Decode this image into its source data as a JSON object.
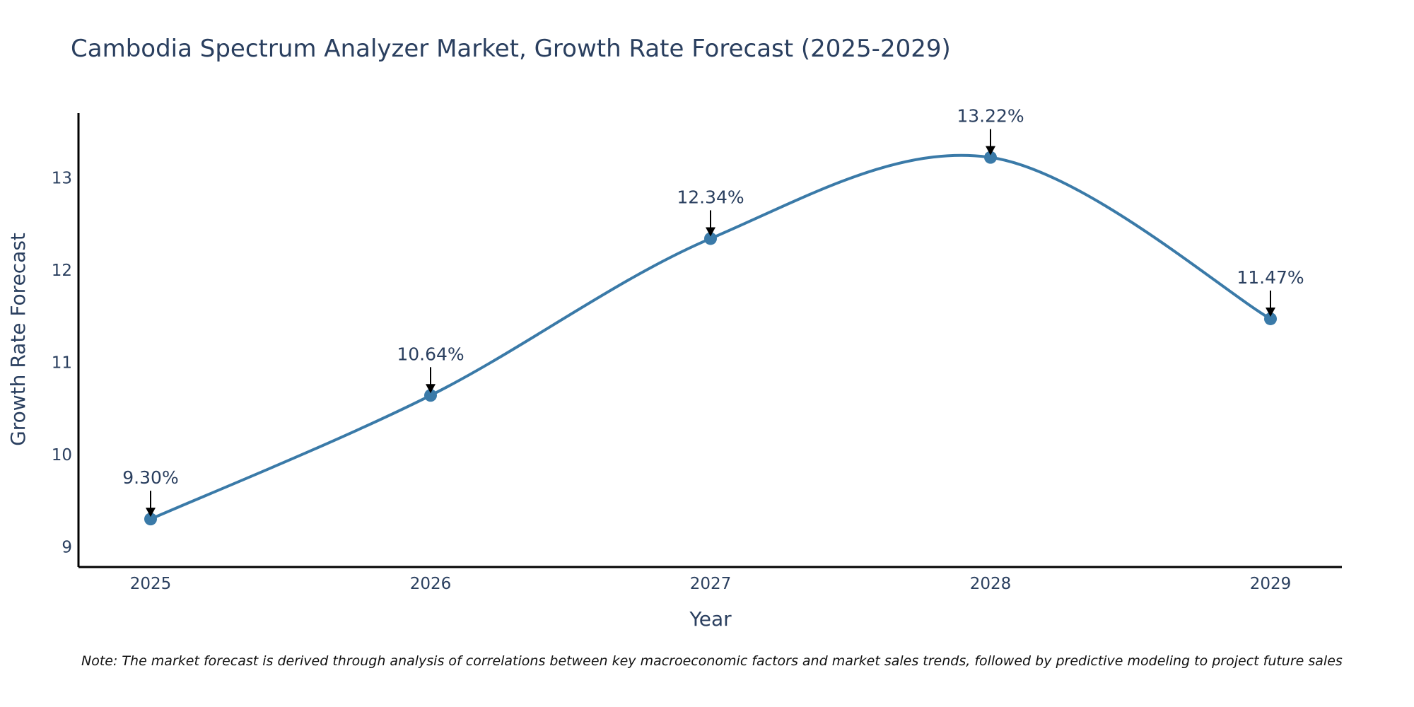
{
  "chart_data": {
    "type": "line",
    "title": "Cambodia Spectrum Analyzer Market, Growth Rate Forecast (2025-2029)",
    "xlabel": "Year",
    "ylabel": "Growth Rate Forecast",
    "categories": [
      "2025",
      "2026",
      "2027",
      "2028",
      "2029"
    ],
    "values": [
      9.3,
      10.64,
      12.34,
      13.22,
      11.47
    ],
    "data_labels": [
      "9.30%",
      "10.64%",
      "12.34%",
      "13.22%",
      "11.47%"
    ],
    "y_ticks": [
      9,
      10,
      11,
      12,
      13
    ],
    "ylim": [
      8.78,
      13.7
    ],
    "grid": false,
    "line_shape": "spline",
    "line_color": "#3a7aa8",
    "marker_color": "#3a7aa8",
    "annotation_arrow_color": "#000000",
    "note": "Note: The market forecast is derived through analysis of correlations between key macroeconomic factors and market sales trends, followed by predictive modeling to project future sales"
  }
}
